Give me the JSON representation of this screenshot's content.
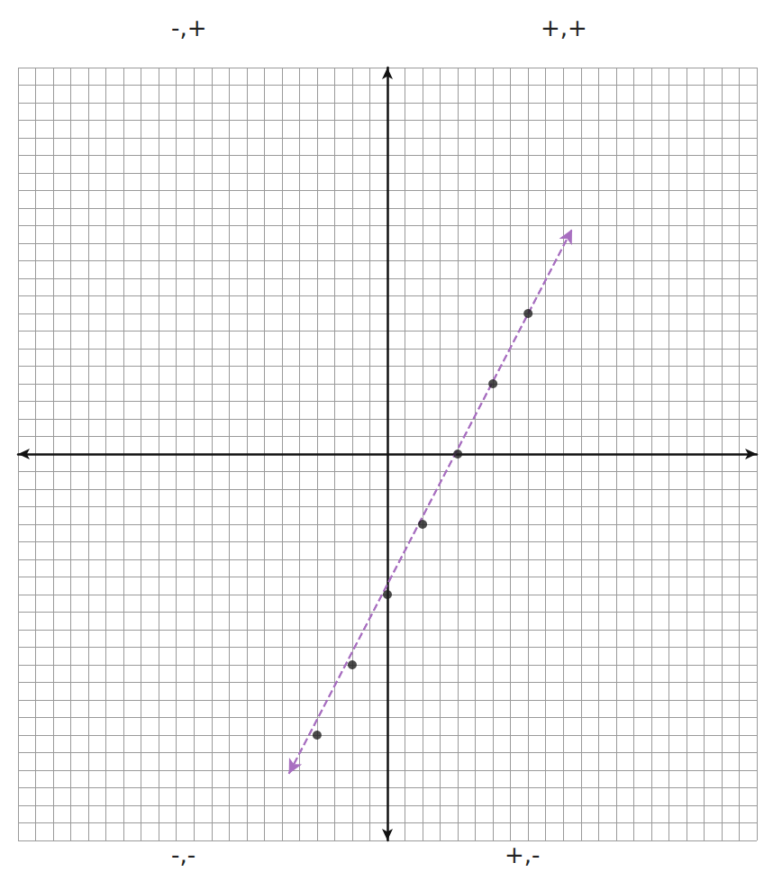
{
  "chart_data": {
    "type": "scatter",
    "quadrant_labels": {
      "top_left": "-,+",
      "top_right": "+,+",
      "bottom_left": "-,-",
      "bottom_right": "+,-"
    },
    "series": [
      {
        "type": "scatter",
        "color": "#1e1e1e",
        "marker": "circle",
        "x": [
          -4,
          -2,
          0,
          2,
          4,
          6,
          8
        ],
        "values": [
          -16,
          -12,
          -8,
          -4,
          0,
          4,
          8
        ]
      },
      {
        "type": "line",
        "color": "#a86fc0",
        "line_style": "dashed",
        "marker": "arrow",
        "x": [
          -5.6,
          10.5
        ],
        "values": [
          -18.2,
          12.8
        ]
      }
    ],
    "xlim": [
      -21,
      21
    ],
    "ylim": [
      -22,
      22
    ],
    "xticks": [
      -21,
      -20,
      -19,
      -18,
      -17,
      -16,
      -15,
      -14,
      -13,
      -12,
      -11,
      -10,
      -9,
      -8,
      -7,
      -6,
      -5,
      -4,
      -3,
      -2,
      -1,
      0,
      1,
      2,
      3,
      4,
      5,
      6,
      7,
      8,
      9,
      10,
      11,
      12,
      13,
      14,
      15,
      16,
      17,
      18,
      19,
      20,
      21
    ],
    "yticks": [
      -22,
      -21,
      -20,
      -19,
      -18,
      -17,
      -16,
      -15,
      -14,
      -13,
      -12,
      -11,
      -10,
      -9,
      -8,
      -7,
      -6,
      -5,
      -4,
      -3,
      -2,
      -1,
      0,
      1,
      2,
      3,
      4,
      5,
      6,
      7,
      8,
      9,
      10,
      11,
      12,
      13,
      14,
      15,
      16,
      17,
      18,
      19,
      20,
      21,
      22
    ],
    "grid": true,
    "tick_labels": false
  }
}
